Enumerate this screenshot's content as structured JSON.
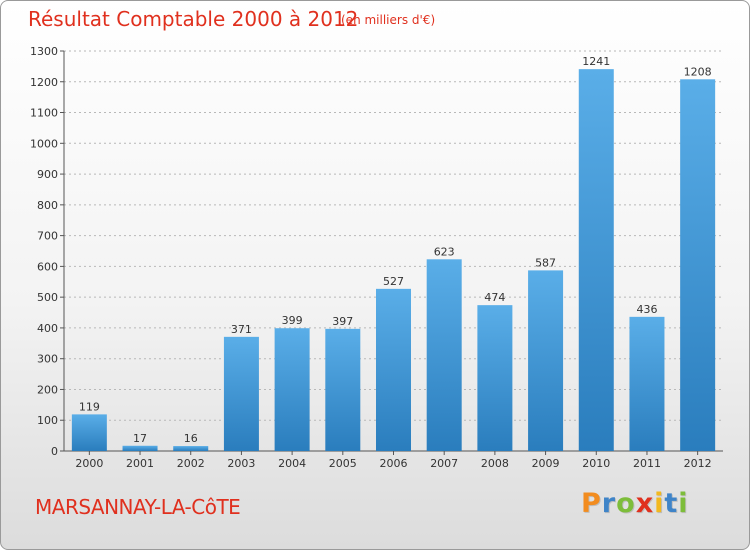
{
  "header": {
    "title": "Résultat Comptable 2000 à 2012",
    "subtitle": "(en milliers d'€)"
  },
  "footer": {
    "commune": "MARSANNAY-LA-CôTE",
    "logo_letters": [
      "P",
      "r",
      "o",
      "x",
      "i",
      "t",
      "i"
    ],
    "logo_colors": [
      "#f28c1f",
      "#3f84c8",
      "#7dbd3a",
      "#e0301e",
      "#f2b81f",
      "#3f84c8",
      "#7dbd3a"
    ]
  },
  "chart_data": {
    "type": "bar",
    "categories": [
      "2000",
      "2001",
      "2002",
      "2003",
      "2004",
      "2005",
      "2006",
      "2007",
      "2008",
      "2009",
      "2010",
      "2011",
      "2012"
    ],
    "values": [
      119,
      17,
      16,
      371,
      399,
      397,
      527,
      623,
      474,
      587,
      1241,
      436,
      1208
    ],
    "ylim": [
      0,
      1300
    ],
    "yticks": [
      0,
      100,
      200,
      300,
      400,
      500,
      600,
      700,
      800,
      900,
      1000,
      1100,
      1200,
      1300
    ],
    "grid": "horizontal dashed",
    "colors": {
      "bar_top": "#5aaee8",
      "bar_bottom": "#2a7dbd",
      "title": "#e0301e"
    }
  }
}
